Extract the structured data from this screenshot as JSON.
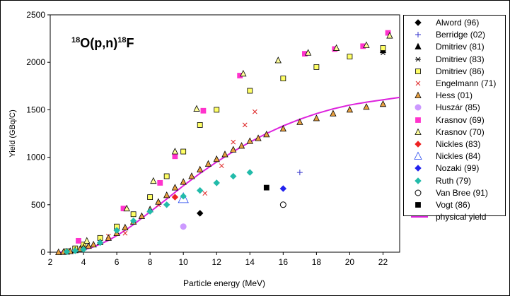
{
  "chart_data": {
    "type": "scatter",
    "title": "18O(p,n)18F",
    "title_parts": {
      "mass1": "18",
      "target": "O(p,n)",
      "mass2": "18",
      "product": "F"
    },
    "xlabel": "Particle energy (MeV)",
    "ylabel": "Yield (GBq/C)",
    "xlim": [
      2,
      23
    ],
    "ylim": [
      0,
      2500
    ],
    "xticks": [
      2,
      4,
      6,
      8,
      10,
      12,
      14,
      16,
      18,
      20,
      22
    ],
    "yticks": [
      0,
      500,
      1000,
      1500,
      2000,
      2500
    ],
    "grid": false,
    "legend_position": "right",
    "series": [
      {
        "name": "Alword (96)",
        "marker": "diamond",
        "color": "#000000",
        "filled": true,
        "points": [
          [
            11,
            410
          ]
        ]
      },
      {
        "name": "Berridge (02)",
        "marker": "plus",
        "color": "#3333cc",
        "filled": false,
        "points": [
          [
            17,
            840
          ]
        ]
      },
      {
        "name": "Dmitriev (81)",
        "marker": "triangle",
        "color": "#000000",
        "filled": true,
        "points": [
          [
            22,
            2130
          ]
        ]
      },
      {
        "name": "Dmitriev (83)",
        "marker": "star",
        "color": "#000000",
        "filled": false,
        "points": [
          [
            22,
            2100
          ]
        ]
      },
      {
        "name": "Dmitriev (86)",
        "marker": "square",
        "color": "#ffff66",
        "filled": true,
        "points": [
          [
            3,
            10
          ],
          [
            3.5,
            40
          ],
          [
            4,
            80
          ],
          [
            5,
            150
          ],
          [
            6,
            270
          ],
          [
            7,
            400
          ],
          [
            8,
            580
          ],
          [
            9,
            800
          ],
          [
            10,
            1060
          ],
          [
            11,
            1340
          ],
          [
            12,
            1500
          ],
          [
            14,
            1700
          ],
          [
            16,
            1830
          ],
          [
            18,
            1950
          ],
          [
            20,
            2060
          ],
          [
            22,
            2150
          ]
        ]
      },
      {
        "name": "Engelmann (71)",
        "marker": "x",
        "color": "#dd2222",
        "filled": false,
        "points": [
          [
            5.5,
            170
          ],
          [
            6.5,
            200
          ],
          [
            8.5,
            500
          ],
          [
            11.3,
            620
          ],
          [
            12.3,
            910
          ],
          [
            13,
            1160
          ],
          [
            13.7,
            1340
          ],
          [
            14.3,
            1480
          ]
        ]
      },
      {
        "name": "Hess (01)",
        "marker": "triangle",
        "color": "#e8a040",
        "filled": true,
        "points": [
          [
            2.5,
            0
          ],
          [
            2.8,
            2
          ],
          [
            3,
            5
          ],
          [
            3.2,
            10
          ],
          [
            3.5,
            20
          ],
          [
            3.8,
            35
          ],
          [
            4,
            50
          ],
          [
            4.3,
            65
          ],
          [
            4.6,
            80
          ],
          [
            5,
            105
          ],
          [
            5.5,
            150
          ],
          [
            6,
            200
          ],
          [
            6.5,
            260
          ],
          [
            7,
            320
          ],
          [
            7.5,
            380
          ],
          [
            8,
            450
          ],
          [
            8.5,
            530
          ],
          [
            9,
            600
          ],
          [
            9.5,
            680
          ],
          [
            10,
            740
          ],
          [
            10.5,
            800
          ],
          [
            11,
            870
          ],
          [
            11.5,
            930
          ],
          [
            12,
            980
          ],
          [
            12.5,
            1030
          ],
          [
            13,
            1080
          ],
          [
            13.5,
            1120
          ],
          [
            14,
            1170
          ],
          [
            14.5,
            1200
          ],
          [
            15,
            1240
          ],
          [
            16,
            1300
          ],
          [
            17,
            1370
          ],
          [
            18,
            1410
          ],
          [
            19,
            1460
          ],
          [
            20,
            1500
          ],
          [
            21,
            1530
          ],
          [
            22,
            1560
          ]
        ]
      },
      {
        "name": "Huszár (85)",
        "marker": "circle",
        "color": "#cc99ff",
        "filled": true,
        "points": [
          [
            10,
            270
          ]
        ]
      },
      {
        "name": "Krasnov (69)",
        "marker": "square",
        "color": "#ff33cc",
        "filled": true,
        "points": [
          [
            3.7,
            120
          ],
          [
            6.4,
            460
          ],
          [
            8.6,
            730
          ],
          [
            9.5,
            1010
          ],
          [
            11.2,
            1490
          ],
          [
            13.4,
            1860
          ],
          [
            17.3,
            2090
          ],
          [
            19.1,
            2140
          ],
          [
            20.8,
            2170
          ],
          [
            22.3,
            2310
          ]
        ]
      },
      {
        "name": "Krasnov (70)",
        "marker": "triangle",
        "color": "#ffff99",
        "filled": true,
        "points": [
          [
            4.2,
            120
          ],
          [
            6.6,
            460
          ],
          [
            8.2,
            750
          ],
          [
            9.5,
            1060
          ],
          [
            10.8,
            1510
          ],
          [
            13.6,
            1880
          ],
          [
            15.7,
            2020
          ],
          [
            17.5,
            2100
          ],
          [
            19.2,
            2150
          ],
          [
            21,
            2180
          ],
          [
            22.4,
            2280
          ]
        ]
      },
      {
        "name": "Nickles (83)",
        "marker": "diamond",
        "color": "#ee2222",
        "filled": true,
        "points": [
          [
            9.5,
            580
          ]
        ]
      },
      {
        "name": "Nickles (84)",
        "marker": "triangle",
        "color": "#2244ee",
        "filled": false,
        "points": [
          [
            10,
            570
          ]
        ]
      },
      {
        "name": "Nozaki (99)",
        "marker": "diamond",
        "color": "#2222ee",
        "filled": true,
        "points": [
          [
            16,
            670
          ]
        ]
      },
      {
        "name": "Ruth (79)",
        "marker": "diamond",
        "color": "#22bbaa",
        "filled": true,
        "points": [
          [
            3,
            5
          ],
          [
            3.5,
            15
          ],
          [
            4,
            30
          ],
          [
            5,
            100
          ],
          [
            6,
            230
          ],
          [
            7,
            330
          ],
          [
            8,
            430
          ],
          [
            9,
            500
          ],
          [
            10,
            590
          ],
          [
            11,
            650
          ],
          [
            12,
            730
          ],
          [
            13,
            800
          ],
          [
            14,
            840
          ]
        ]
      },
      {
        "name": "Van Bree (91)",
        "marker": "circle",
        "color": "#000000",
        "filled": false,
        "points": [
          [
            16,
            500
          ]
        ]
      },
      {
        "name": "Vogt (86)",
        "marker": "square",
        "color": "#000000",
        "filled": true,
        "points": [
          [
            15,
            680
          ]
        ]
      },
      {
        "name": "physical yield",
        "marker": "line",
        "color": "#dd22dd",
        "filled": false,
        "points": [
          [
            2.5,
            0
          ],
          [
            3,
            3
          ],
          [
            3.5,
            10
          ],
          [
            4,
            25
          ],
          [
            4.5,
            50
          ],
          [
            5,
            85
          ],
          [
            5.5,
            125
          ],
          [
            6,
            175
          ],
          [
            6.5,
            230
          ],
          [
            7,
            290
          ],
          [
            8,
            425
          ],
          [
            9,
            560
          ],
          [
            10,
            700
          ],
          [
            11,
            830
          ],
          [
            12,
            950
          ],
          [
            13,
            1060
          ],
          [
            14,
            1160
          ],
          [
            15,
            1250
          ],
          [
            16,
            1330
          ],
          [
            17,
            1400
          ],
          [
            18,
            1460
          ],
          [
            19,
            1510
          ],
          [
            20,
            1550
          ],
          [
            21,
            1580
          ],
          [
            22,
            1605
          ],
          [
            23,
            1630
          ]
        ]
      }
    ]
  }
}
